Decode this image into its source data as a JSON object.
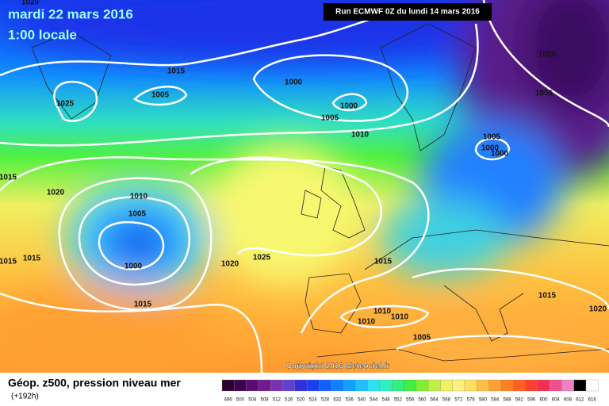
{
  "header": {
    "date": "mardi 22 mars 2016",
    "time": "1:00 locale",
    "run": "Run ECMWF 0Z du lundi 14 mars 2016"
  },
  "copyright": "Copyright 2016 Meteociel.fr",
  "footer": {
    "title": "Géop. z500, pression niveau mer",
    "lead": "(+192h)"
  },
  "isobars": [
    "1020",
    "1015",
    "1005",
    "1025",
    "1000",
    "1000",
    "1005",
    "1010",
    "1000",
    "1005",
    "1005",
    "1000",
    "1000",
    "1015",
    "1020",
    "1010",
    "1005",
    "1000",
    "1015",
    "1015",
    "1020",
    "1025",
    "1015",
    "1015",
    "1010",
    "1010",
    "1010",
    "1005",
    "1015",
    "1020"
  ],
  "scale": [
    {
      "label": "496",
      "color": "#2a0030"
    },
    {
      "label": "500",
      "color": "#400050"
    },
    {
      "label": "504",
      "color": "#5a0a70"
    },
    {
      "label": "508",
      "color": "#701a90"
    },
    {
      "label": "512",
      "color": "#7a30b0"
    },
    {
      "label": "516",
      "color": "#6040d0"
    },
    {
      "label": "520",
      "color": "#3030e0"
    },
    {
      "label": "524",
      "color": "#1a40f0"
    },
    {
      "label": "528",
      "color": "#1060ff"
    },
    {
      "label": "532",
      "color": "#1080ff"
    },
    {
      "label": "536",
      "color": "#10a0ff"
    },
    {
      "label": "540",
      "color": "#20c0ff"
    },
    {
      "label": "544",
      "color": "#30e0f0"
    },
    {
      "label": "548",
      "color": "#30f0c0"
    },
    {
      "label": "552",
      "color": "#30f080"
    },
    {
      "label": "556",
      "color": "#40f040"
    },
    {
      "label": "560",
      "color": "#80f030"
    },
    {
      "label": "564",
      "color": "#c0f040"
    },
    {
      "label": "568",
      "color": "#f0f060"
    },
    {
      "label": "572",
      "color": "#fff080"
    },
    {
      "label": "576",
      "color": "#ffe060"
    },
    {
      "label": "580",
      "color": "#ffc040"
    },
    {
      "label": "584",
      "color": "#ffa030"
    },
    {
      "label": "588",
      "color": "#ff8020"
    },
    {
      "label": "592",
      "color": "#ff6020"
    },
    {
      "label": "596",
      "color": "#ff4030"
    },
    {
      "label": "600",
      "color": "#f03050"
    },
    {
      "label": "604",
      "color": "#f05090"
    },
    {
      "label": "608",
      "color": "#f080c0"
    },
    {
      "label": "612",
      "color": "#000000"
    },
    {
      "label": "616",
      "color": "#ffffff"
    }
  ]
}
